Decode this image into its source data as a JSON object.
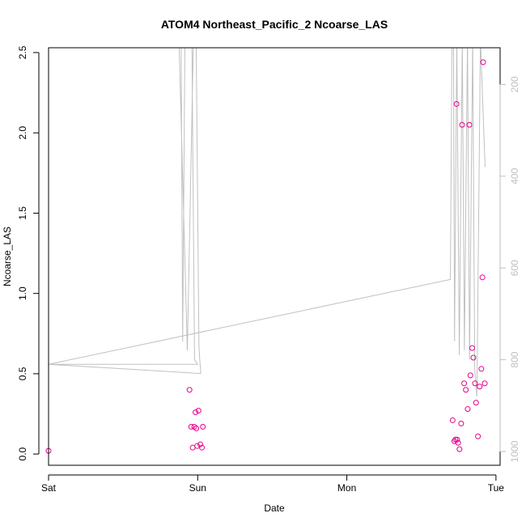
{
  "chart_data": {
    "type": "scatter",
    "title": "ATOM4 Northeast_Pacific_2 Ncoarse_LAS",
    "xlabel": "Date",
    "ylabel": "Ncoarse_LAS",
    "x_axis": {
      "kind": "date",
      "range": [
        "2025-01-04T00:00",
        "2025-01-07T00:40"
      ],
      "ticks": [
        {
          "value": "2025-01-04T00:00",
          "label": "Sat"
        },
        {
          "value": "2025-01-05T00:00",
          "label": "Sun"
        },
        {
          "value": "2025-01-06T00:00",
          "label": "Mon"
        },
        {
          "value": "2025-01-07T00:00",
          "label": "Tue"
        }
      ]
    },
    "y_axis": {
      "range": [
        -0.07,
        2.53
      ],
      "ticks": [
        "0.0",
        "0.5",
        "1.0",
        "1.5",
        "2.0",
        "2.5"
      ]
    },
    "y_axis_right": {
      "reversed": true,
      "range": [
        1030,
        120
      ],
      "ticks": [
        "200",
        "400",
        "600",
        "800",
        "1000"
      ],
      "color": "#bebebe"
    },
    "grid": false,
    "series": [
      {
        "kind": "points",
        "marker": "open-circle",
        "color": "#e8008c",
        "points": [
          {
            "x": "2025-01-04T00:00",
            "y": 0.02
          },
          {
            "x": "2025-01-04T22:41",
            "y": 0.4
          },
          {
            "x": "2025-01-04T22:57",
            "y": 0.17
          },
          {
            "x": "2025-01-04T23:12",
            "y": 0.04
          },
          {
            "x": "2025-01-04T23:27",
            "y": 0.17
          },
          {
            "x": "2025-01-04T23:39",
            "y": 0.26
          },
          {
            "x": "2025-01-04T23:47",
            "y": 0.16
          },
          {
            "x": "2025-01-04T23:55",
            "y": 0.05
          },
          {
            "x": "2025-01-05T00:08",
            "y": 0.27
          },
          {
            "x": "2025-01-05T00:25",
            "y": 0.06
          },
          {
            "x": "2025-01-05T00:41",
            "y": 0.04
          },
          {
            "x": "2025-01-05T00:50",
            "y": 0.17
          },
          {
            "x": "2025-01-06T17:02",
            "y": 0.21
          },
          {
            "x": "2025-01-06T17:18",
            "y": 0.08
          },
          {
            "x": "2025-01-06T17:29",
            "y": 0.09
          },
          {
            "x": "2025-01-06T17:39",
            "y": 2.18
          },
          {
            "x": "2025-01-06T17:45",
            "y": 0.09
          },
          {
            "x": "2025-01-06T17:55",
            "y": 0.07
          },
          {
            "x": "2025-01-06T18:08",
            "y": 0.03
          },
          {
            "x": "2025-01-06T18:24",
            "y": 0.19
          },
          {
            "x": "2025-01-06T18:33",
            "y": 2.05
          },
          {
            "x": "2025-01-06T18:53",
            "y": 0.44
          },
          {
            "x": "2025-01-06T19:09",
            "y": 0.4
          },
          {
            "x": "2025-01-06T19:27",
            "y": 0.28
          },
          {
            "x": "2025-01-06T19:43",
            "y": 2.05
          },
          {
            "x": "2025-01-06T19:53",
            "y": 0.49
          },
          {
            "x": "2025-01-06T20:10",
            "y": 0.66
          },
          {
            "x": "2025-01-06T20:22",
            "y": 0.6
          },
          {
            "x": "2025-01-06T20:38",
            "y": 0.44
          },
          {
            "x": "2025-01-06T20:48",
            "y": 0.32
          },
          {
            "x": "2025-01-06T21:06",
            "y": 0.11
          },
          {
            "x": "2025-01-06T21:23",
            "y": 0.42
          },
          {
            "x": "2025-01-06T21:39",
            "y": 0.53
          },
          {
            "x": "2025-01-06T21:49",
            "y": 1.1
          },
          {
            "x": "2025-01-06T21:56",
            "y": 2.44
          },
          {
            "x": "2025-01-06T22:12",
            "y": 0.44
          }
        ]
      },
      {
        "kind": "line",
        "axis": "right",
        "color": "#c0c0c0",
        "points": [
          {
            "x": "2025-01-04T00:00",
            "y": 810
          },
          {
            "x": "2025-01-05T00:00",
            "y": 810
          },
          {
            "x": "2025-01-04T23:30",
            "y": 800
          },
          {
            "x": "2025-01-04T23:00",
            "y": 0
          },
          {
            "x": "2025-01-04T22:00",
            "y": 0
          },
          {
            "x": "2025-01-04T21:35",
            "y": 760
          },
          {
            "x": "2025-01-04T21:20",
            "y": 110
          },
          {
            "x": "2025-01-04T21:00",
            "y": 110
          },
          {
            "x": "2025-01-04T22:20",
            "y": 780
          },
          {
            "x": "2025-01-04T23:18",
            "y": 110
          },
          {
            "x": "2025-01-04T23:45",
            "y": 100
          },
          {
            "x": "2025-01-05T00:12",
            "y": 770
          },
          {
            "x": "2025-01-05T00:20",
            "y": 800
          },
          {
            "x": "2025-01-05T00:30",
            "y": 830
          },
          {
            "x": "2025-01-04T00:00",
            "y": 810
          },
          {
            "x": "2025-01-06T16:40",
            "y": 625
          },
          {
            "x": "2025-01-06T16:55",
            "y": 110
          },
          {
            "x": "2025-01-06T17:10",
            "y": 110
          },
          {
            "x": "2025-01-06T17:20",
            "y": 760
          },
          {
            "x": "2025-01-06T17:42",
            "y": 100
          },
          {
            "x": "2025-01-06T18:06",
            "y": 790
          },
          {
            "x": "2025-01-06T18:35",
            "y": 100
          },
          {
            "x": "2025-01-06T18:55",
            "y": 780
          },
          {
            "x": "2025-01-06T19:25",
            "y": 100
          },
          {
            "x": "2025-01-06T19:45",
            "y": 800
          },
          {
            "x": "2025-01-06T20:15",
            "y": 100
          },
          {
            "x": "2025-01-06T20:35",
            "y": 820
          },
          {
            "x": "2025-01-06T20:55",
            "y": 880
          },
          {
            "x": "2025-01-06T21:00",
            "y": 790
          },
          {
            "x": "2025-01-06T21:30",
            "y": 100
          },
          {
            "x": "2025-01-06T22:15",
            "y": 380
          }
        ]
      }
    ]
  }
}
